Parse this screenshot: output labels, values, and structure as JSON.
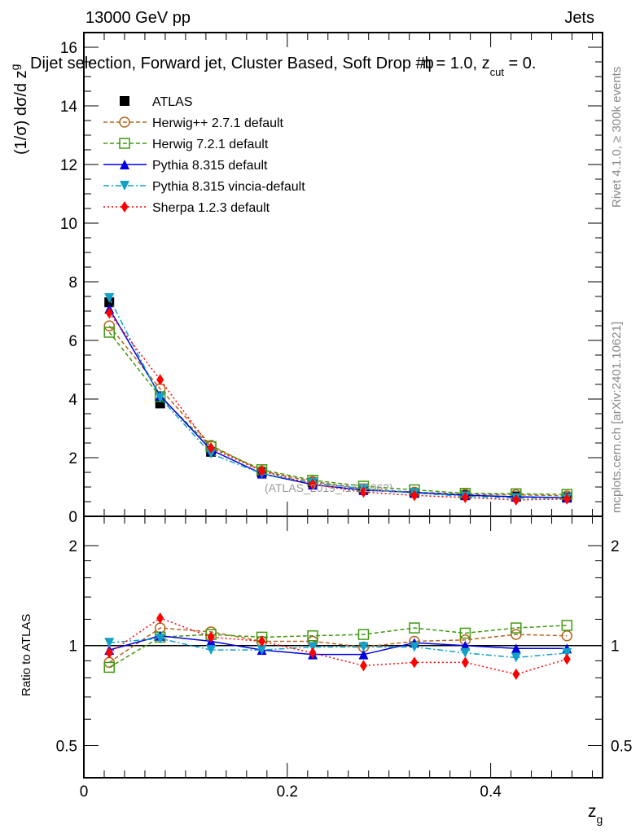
{
  "chart_data": {
    "type": "line",
    "header_left": "13000 GeV pp",
    "header_right": "Jets",
    "title": "Dijet selection, Forward jet, Cluster Based, Soft Drop #b",
    "title_tail": "η = 1.0, z",
    "title_sub": "cut",
    "title_end": " = 0.",
    "ylabel": "(1/σ) dσ/d z",
    "ylabel_sub": "g",
    "xlabel": "z",
    "xlabel_sub": "g",
    "ratio_ylabel": "Ratio to ATLAS",
    "side_label_top": "Rivet 4.1.0, ≥ 300k events",
    "side_label_bottom": "mcplots.cern.ch [arXiv:2401.10621]",
    "watermark": "(ATLAS_2019_I1772062)",
    "xlim": [
      0,
      0.51
    ],
    "ylim": [
      0,
      16.5
    ],
    "ratio_ylim": [
      0.4,
      2.45
    ],
    "ratio_scale": "log",
    "x_ticks": [
      "0",
      "0.2",
      "0.4"
    ],
    "y_ticks": [
      "0",
      "2",
      "4",
      "6",
      "8",
      "10",
      "12",
      "14",
      "16"
    ],
    "ratio_ticks": [
      "0.5",
      "1",
      "2"
    ],
    "legend_position": "top-left",
    "x": [
      0.025,
      0.075,
      0.125,
      0.175,
      0.225,
      0.275,
      0.325,
      0.375,
      0.425,
      0.475
    ],
    "data": {
      "name": "ATLAS",
      "values": [
        7.3,
        3.85,
        2.2,
        1.5,
        1.15,
        0.95,
        0.8,
        0.72,
        0.68,
        0.65
      ],
      "color": "#000000"
    },
    "series": [
      {
        "name": "Herwig++ 2.7.1 default",
        "color": "#b5651d",
        "marker": "circle",
        "dash": "5,3",
        "ratio": [
          0.89,
          1.13,
          1.1,
          1.03,
          1.03,
          0.99,
          1.03,
          1.04,
          1.08,
          1.07
        ]
      },
      {
        "name": "Herwig 7.2.1 default",
        "color": "#3f9a10",
        "marker": "square",
        "dash": "5,3",
        "ratio": [
          0.86,
          1.06,
          1.08,
          1.06,
          1.07,
          1.08,
          1.13,
          1.09,
          1.13,
          1.15
        ]
      },
      {
        "name": "Pythia 8.315 default",
        "color": "#0000e0",
        "marker": "triangle-up",
        "dash": "",
        "ratio": [
          0.97,
          1.07,
          1.03,
          0.97,
          0.94,
          0.94,
          1.02,
          1.0,
          0.98,
          0.98
        ]
      },
      {
        "name": "Pythia 8.315 vincia-default",
        "color": "#11a0c8",
        "marker": "triangle-down",
        "dash": "7,3,2,3",
        "ratio": [
          1.02,
          1.05,
          0.97,
          0.97,
          0.99,
          0.99,
          0.99,
          0.95,
          0.92,
          0.95
        ]
      },
      {
        "name": "Sherpa 1.2.3 default",
        "color": "#ff0000",
        "marker": "diamond",
        "dash": "2,3",
        "ratio": [
          0.95,
          1.21,
          1.06,
          1.03,
          0.95,
          0.87,
          0.89,
          0.89,
          0.82,
          0.91
        ]
      }
    ]
  }
}
